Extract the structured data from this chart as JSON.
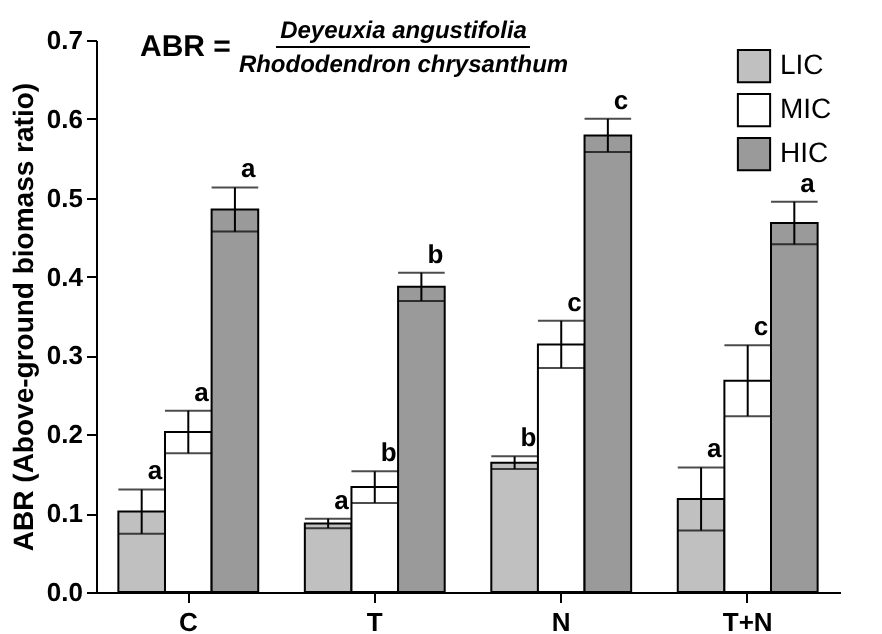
{
  "chart_data": {
    "type": "bar",
    "ylabel": "ABR (Above-ground biomass ratio)",
    "annotations": [
      "ABR =",
      "Deyeuxia angustifolia",
      "Rhododendron chrysanthum"
    ],
    "categories": [
      "C",
      "T",
      "N",
      "T+N"
    ],
    "series": [
      {
        "name": "LIC",
        "color": "#c0c0c0",
        "values": [
          0.102,
          0.087,
          0.164,
          0.118
        ],
        "errors": [
          0.028,
          0.006,
          0.008,
          0.04
        ],
        "value_labels": [
          "a",
          "a",
          "b",
          "a"
        ]
      },
      {
        "name": "MIC",
        "color": "#ffffff",
        "values": [
          0.203,
          0.133,
          0.314,
          0.268
        ],
        "errors": [
          0.027,
          0.02,
          0.03,
          0.045
        ],
        "value_labels": [
          "a",
          "b",
          "c",
          "c"
        ]
      },
      {
        "name": "HIC",
        "color": "#9a9a9a",
        "values": [
          0.485,
          0.387,
          0.579,
          0.468
        ],
        "errors": [
          0.028,
          0.018,
          0.021,
          0.027
        ],
        "value_labels": [
          "a",
          "b",
          "c",
          "a"
        ]
      }
    ],
    "ylim": [
      0,
      0.7
    ],
    "yticks": [
      {
        "value": 0,
        "label": "0.0"
      },
      0.1,
      0.2,
      0.3,
      0.4,
      0.5,
      0.6,
      0.7
    ],
    "legend": "top right"
  }
}
